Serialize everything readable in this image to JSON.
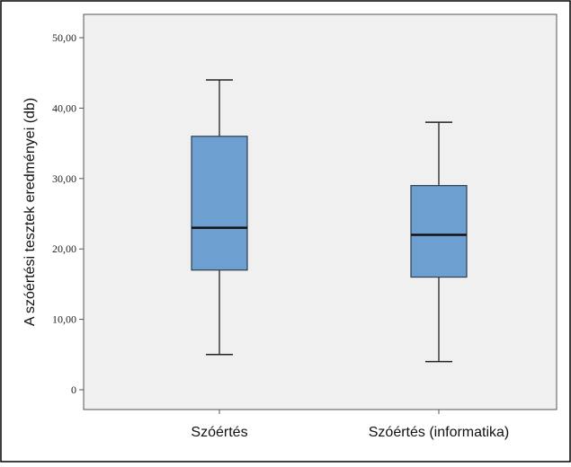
{
  "chart_data": {
    "type": "boxplot",
    "ylabel": "A szóértési tesztek eredményei (db)",
    "xlabel": "",
    "title": "",
    "ylim": [
      -3,
      53
    ],
    "yticks": [
      0,
      10,
      20,
      30,
      40,
      50
    ],
    "ytick_labels": [
      "0",
      "10,00",
      "20,00",
      "30,00",
      "40,00",
      "50,00"
    ],
    "categories": [
      "Szóértés",
      "Szóértés (informatika)"
    ],
    "boxes": [
      {
        "label": "Szóértés",
        "min": 5,
        "q1": 17,
        "median": 23,
        "q3": 36,
        "max": 44
      },
      {
        "label": "Szóértés (informatika)",
        "min": 4,
        "q1": 16,
        "median": 22,
        "q3": 29,
        "max": 38
      }
    ],
    "grid": false,
    "colors": {
      "box_fill": "#6e9fd1",
      "box_stroke": "#2f3e4f",
      "plot_bg": "#f0f0f0",
      "whisker": "#222222"
    }
  }
}
